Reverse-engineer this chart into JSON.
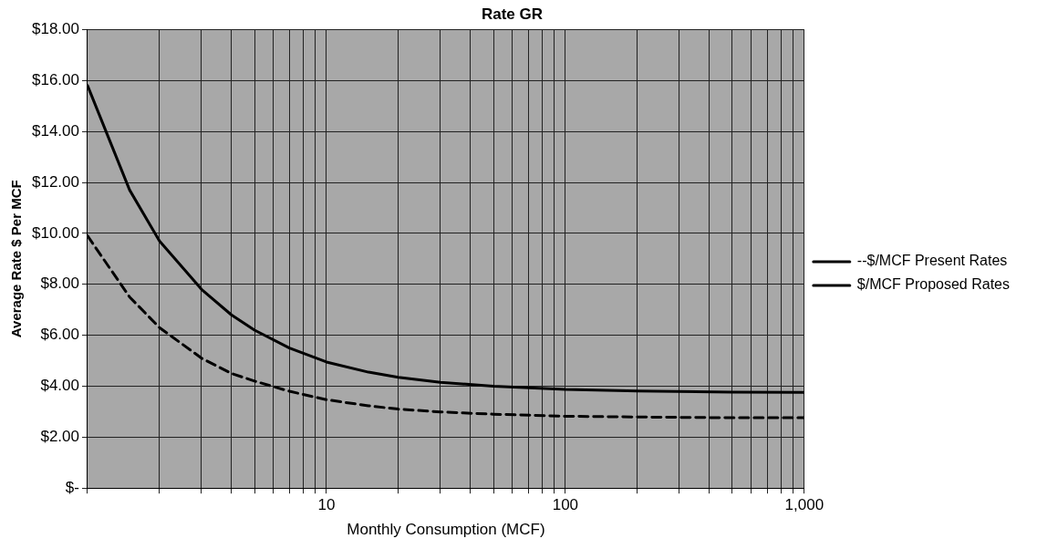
{
  "chart_data": {
    "type": "line",
    "title": "Rate GR",
    "xlabel": "Monthly Consumption (MCF)",
    "ylabel": "Average Rate $ Per MCF",
    "x": [
      1,
      1.5,
      2,
      3,
      4,
      5,
      7,
      10,
      15,
      20,
      30,
      50,
      100,
      200,
      500,
      1000
    ],
    "series": [
      {
        "name": "--$/MCF Present Rates",
        "color": "#000000",
        "line_style": "dashed",
        "values": [
          9.9,
          7.5,
          6.3,
          5.1,
          4.5,
          4.2,
          3.8,
          3.47,
          3.23,
          3.1,
          2.99,
          2.9,
          2.82,
          2.79,
          2.76,
          2.76
        ]
      },
      {
        "name": "$/MCF Proposed Rates",
        "color": "#000000",
        "line_style": "solid",
        "values": [
          15.8,
          11.7,
          9.7,
          7.8,
          6.8,
          6.2,
          5.5,
          4.95,
          4.55,
          4.35,
          4.15,
          4.0,
          3.87,
          3.81,
          3.77,
          3.76
        ]
      }
    ],
    "log": "x",
    "xlim": [
      1,
      1000
    ],
    "xticks": [
      {
        "value": 1,
        "label": null
      },
      {
        "value": 2,
        "label": null
      },
      {
        "value": 3,
        "label": null
      },
      {
        "value": 4,
        "label": null
      },
      {
        "value": 5,
        "label": null
      },
      {
        "value": 6,
        "label": null
      },
      {
        "value": 7,
        "label": null
      },
      {
        "value": 8,
        "label": null
      },
      {
        "value": 9,
        "label": null
      },
      10,
      {
        "value": 20,
        "label": null
      },
      {
        "value": 30,
        "label": null
      },
      {
        "value": 40,
        "label": null
      },
      {
        "value": 50,
        "label": null
      },
      {
        "value": 60,
        "label": null
      },
      {
        "value": 70,
        "label": null
      },
      {
        "value": 80,
        "label": null
      },
      {
        "value": 90,
        "label": null
      },
      100,
      {
        "value": 200,
        "label": null
      },
      {
        "value": 300,
        "label": null
      },
      {
        "value": 400,
        "label": null
      },
      {
        "value": 500,
        "label": null
      },
      {
        "value": 600,
        "label": null
      },
      {
        "value": 700,
        "label": null
      },
      {
        "value": 800,
        "label": null
      },
      {
        "value": 900,
        "label": null
      },
      {
        "value": 1000,
        "label": "1,000"
      }
    ],
    "ylim": [
      0,
      18
    ],
    "yticks": [
      {
        "value": 0,
        "label": "$-"
      },
      {
        "value": 2,
        "label": "$2.00"
      },
      {
        "value": 4,
        "label": "$4.00"
      },
      {
        "value": 6,
        "label": "$6.00"
      },
      {
        "value": 8,
        "label": "$8.00"
      },
      {
        "value": 10,
        "label": "$10.00"
      },
      {
        "value": 12,
        "label": "$12.00"
      },
      {
        "value": 14,
        "label": "$14.00"
      },
      {
        "value": 16,
        "label": "$16.00"
      },
      {
        "value": 18,
        "label": "$18.00"
      }
    ],
    "grid": true,
    "legend": "right",
    "marker": "none"
  }
}
